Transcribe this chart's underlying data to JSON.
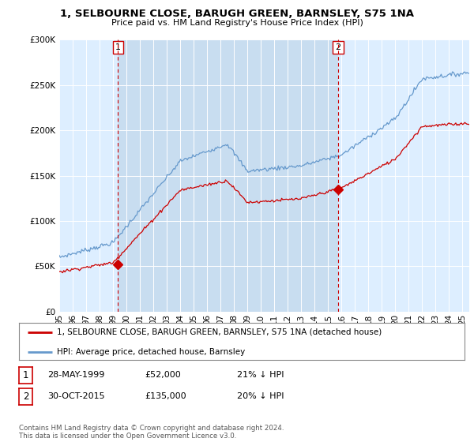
{
  "title": "1, SELBOURNE CLOSE, BARUGH GREEN, BARNSLEY, S75 1NA",
  "subtitle": "Price paid vs. HM Land Registry's House Price Index (HPI)",
  "legend_label_red": "1, SELBOURNE CLOSE, BARUGH GREEN, BARNSLEY, S75 1NA (detached house)",
  "legend_label_blue": "HPI: Average price, detached house, Barnsley",
  "transaction1_date": "28-MAY-1999",
  "transaction1_price": "£52,000",
  "transaction1_hpi": "21% ↓ HPI",
  "transaction2_date": "30-OCT-2015",
  "transaction2_price": "£135,000",
  "transaction2_hpi": "20% ↓ HPI",
  "footer": "Contains HM Land Registry data © Crown copyright and database right 2024.\nThis data is licensed under the Open Government Licence v3.0.",
  "ylim": [
    0,
    300000
  ],
  "yticks": [
    0,
    50000,
    100000,
    150000,
    200000,
    250000,
    300000
  ],
  "background_color": "#ffffff",
  "plot_bg_color": "#ddeeff",
  "highlight_bg_color": "#c8ddf0",
  "red_color": "#cc0000",
  "blue_color": "#6699cc",
  "vline_color": "#cc0000",
  "grid_color": "#ffffff",
  "t1_x": 1999.37,
  "t2_x": 2015.75,
  "t1_y": 52000,
  "t2_y": 135000,
  "xmin": 1995.0,
  "xmax": 2025.5
}
